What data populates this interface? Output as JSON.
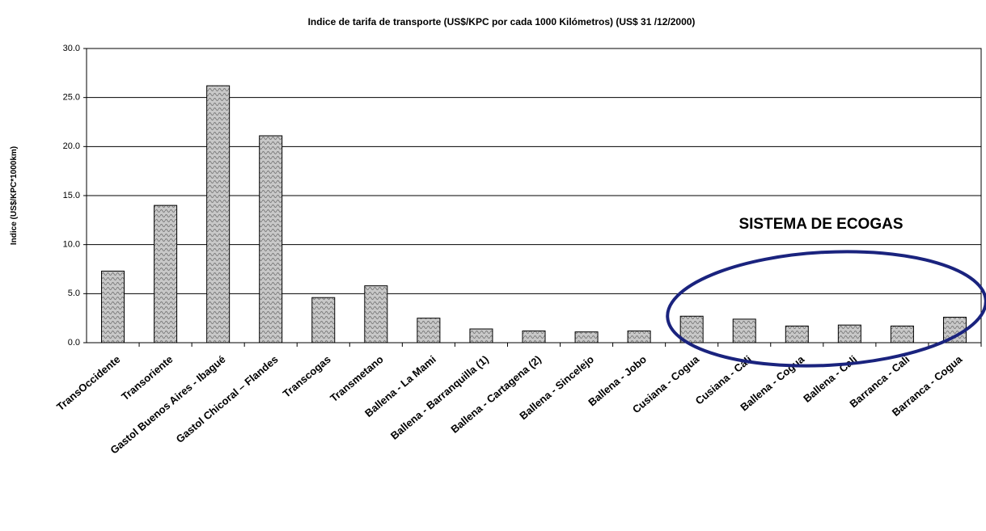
{
  "chart_data": {
    "type": "bar",
    "title": "Indice de tarifa de transporte (US$/KPC por cada 1000 Kilómetros) (US$ 31 /12/2000)",
    "y_label": "Indice (US$/KPC*1000km)",
    "annotation": "SISTEMA DE ECOGAS",
    "categories": [
      "TransOccidente",
      "Transoriente",
      "Gastol Buenos Aires - Ibagué",
      "Gastol Chicoral – Flandes",
      "Transcogas",
      "Transmetano",
      "Ballena - La Mami",
      "Ballena - Barranquilla (1)",
      "Ballena - Cartagena (2)",
      "Ballena - Sincelejo",
      "Ballena - Jobo",
      "Cusiana - Cogua",
      "Cusiana - Cali",
      "Ballena - Cogua",
      "Ballena - Cali",
      "Barranca - Cali",
      "Barranca - Cogua"
    ],
    "values": [
      7.3,
      14.0,
      26.2,
      21.1,
      4.6,
      5.8,
      2.5,
      1.4,
      1.2,
      1.1,
      1.2,
      2.7,
      2.4,
      1.7,
      1.8,
      1.7,
      2.6
    ],
    "color": "#c0c0c0",
    "ylim": [
      0,
      30
    ],
    "yticks": [
      {
        "value": 0,
        "label": "0.0"
      },
      {
        "value": 5,
        "label": "5.0"
      },
      {
        "value": 10,
        "label": "10.0"
      },
      {
        "value": 15,
        "label": "15.0"
      },
      {
        "value": 20,
        "label": "20.0"
      },
      {
        "value": 25,
        "label": "25.0"
      },
      {
        "value": 30,
        "label": "30.0"
      }
    ],
    "grid": true
  }
}
